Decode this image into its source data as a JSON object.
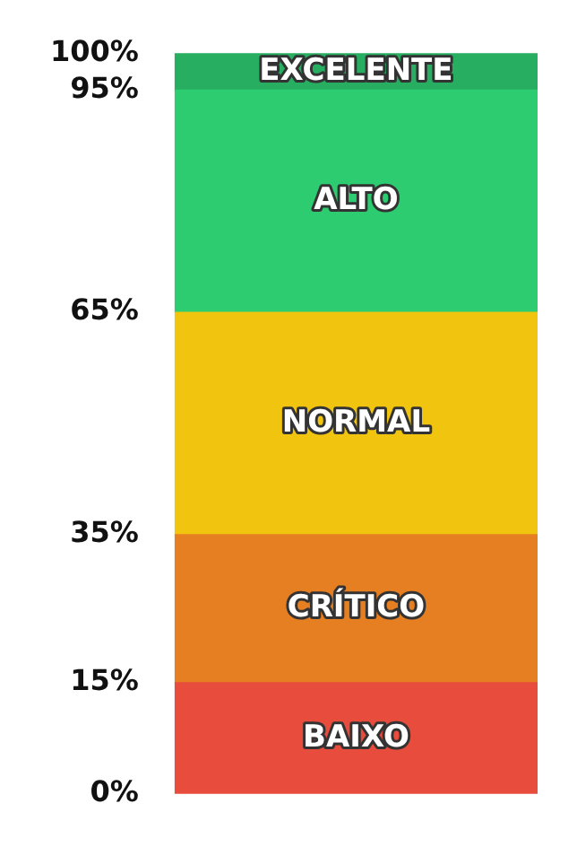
{
  "chart_data": {
    "type": "bar",
    "stacked": true,
    "categories": [
      null
    ],
    "series": [
      {
        "name": "BAIXO",
        "color": "#e74c3c",
        "values": [
          15
        ]
      },
      {
        "name": "CRÍTICO",
        "color": "#e67e22",
        "values": [
          20
        ]
      },
      {
        "name": "NORMAL",
        "color": "#f1c40f",
        "values": [
          30
        ]
      },
      {
        "name": "ALTO",
        "color": "#2ecc71",
        "values": [
          30
        ]
      },
      {
        "name": "EXCELENTE",
        "color": "#27ae60",
        "values": [
          5
        ]
      }
    ],
    "ylim": [
      0,
      100
    ],
    "yticks": [
      {
        "value": 0,
        "label": "0%"
      },
      {
        "value": 15,
        "label": "15%"
      },
      {
        "value": 35,
        "label": "35%"
      },
      {
        "value": 65,
        "label": "65%"
      },
      {
        "value": 95,
        "label": "95%"
      },
      {
        "value": 100,
        "label": "100%"
      }
    ],
    "tick_labels": "y"
  }
}
